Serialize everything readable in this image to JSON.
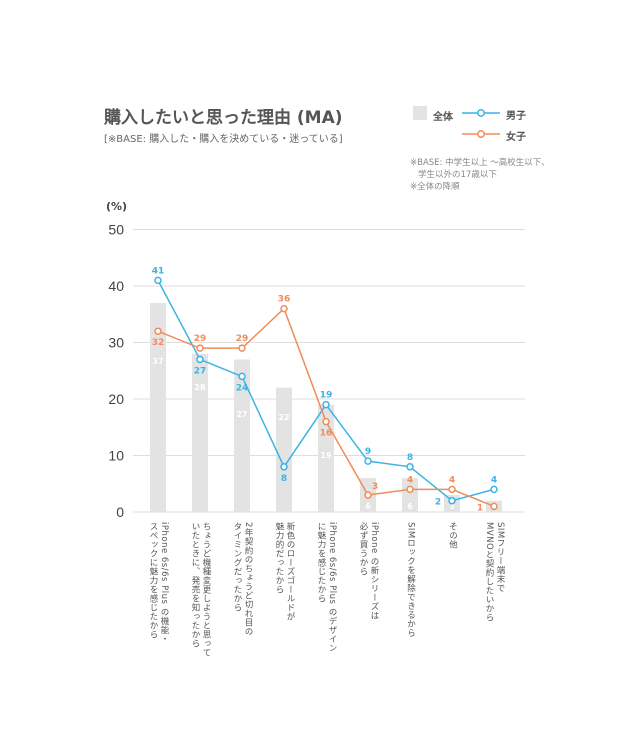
{
  "chart_data": {
    "type": "bar+line",
    "title": "購入したいと思った理由 (MA)",
    "subtitle": "[※BASE: 購入した・購入を決めている・迷っている]",
    "ylabel": "(%)",
    "ylim": [
      0,
      50
    ],
    "yticks": [
      0,
      10,
      20,
      30,
      40,
      50
    ],
    "grid": true,
    "legend_position": "top-right",
    "notes": [
      "※BASE: 中学生以上 〜高校生以下、",
      "学生以外の17歳以下",
      "※全体の降順"
    ],
    "categories": [
      [
        "iPhone 6s/6s Plus の機能・",
        "スペックに魅力を感じたから"
      ],
      [
        "ちょうど機種変更しようと思って",
        "いたときに、発売を知ったから"
      ],
      [
        "2年契約のちょうど切れ目の",
        "タイミングだったから"
      ],
      [
        "新色のローズゴールドが",
        "魅力的だったから"
      ],
      [
        "iPhone 6s/6s Plus のデザイン",
        "に魅力を感じたから"
      ],
      [
        "iPhone の新シリーズは",
        "必ず買うから"
      ],
      [
        "SIMロックを解除できるから"
      ],
      [
        "その他"
      ],
      [
        "SIMフリー端末で",
        "MVNOと契約したいから"
      ]
    ],
    "series": [
      {
        "name": "全体",
        "type": "bar",
        "color": "#e3e3e3",
        "values": [
          37,
          28,
          27,
          22,
          19,
          6,
          6,
          3,
          2
        ]
      },
      {
        "name": "男子",
        "type": "line",
        "color": "#3bb4e5",
        "values": [
          41,
          27,
          24,
          8,
          19,
          9,
          8,
          2,
          4
        ]
      },
      {
        "name": "女子",
        "type": "line",
        "color": "#f08c5a",
        "values": [
          32,
          29,
          29,
          36,
          16,
          3,
          4,
          4,
          1
        ]
      }
    ]
  }
}
